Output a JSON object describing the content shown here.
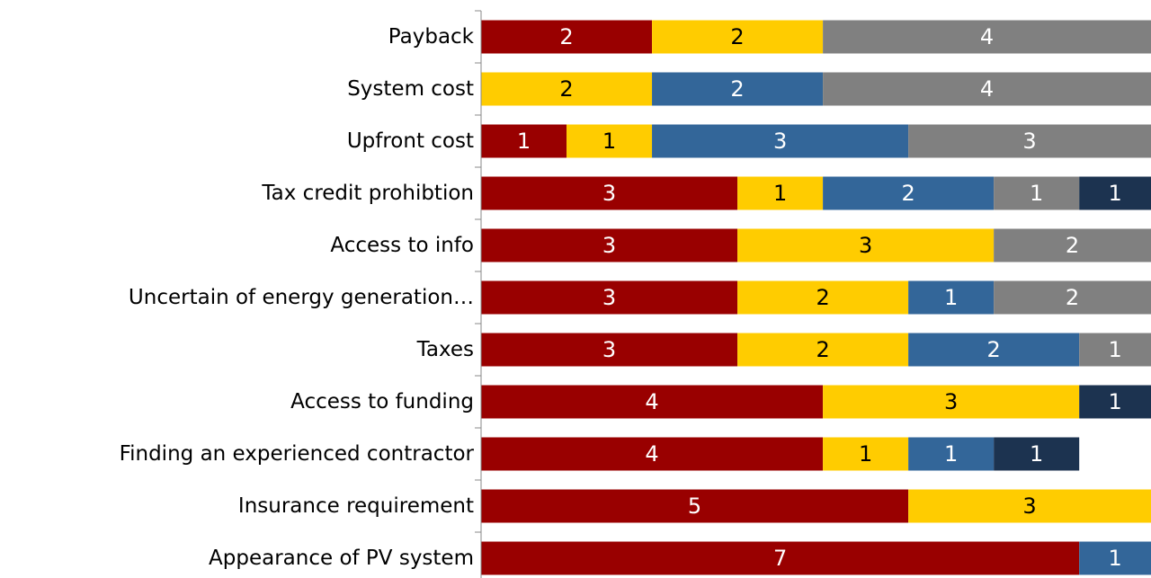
{
  "chart_data": {
    "type": "stacked-bar-horizontal",
    "categories": [
      "Payback",
      "System cost",
      "Upfront cost",
      "Tax credit prohibtion",
      "Access to info",
      "Uncertain of energy generation…",
      "Taxes",
      "Access to funding",
      "Finding an experienced contractor",
      "Insurance requirement",
      "Appearance of PV system"
    ],
    "series": [
      {
        "color": "#990000",
        "values": [
          2,
          null,
          1,
          3,
          3,
          3,
          3,
          4,
          4,
          5,
          7
        ]
      },
      {
        "color": "#ffcc00",
        "values": [
          2,
          2,
          1,
          1,
          3,
          2,
          2,
          3,
          1,
          3,
          null
        ]
      },
      {
        "color": "#336699",
        "values": [
          null,
          2,
          3,
          2,
          null,
          1,
          2,
          null,
          1,
          null,
          1
        ]
      },
      {
        "color": "#808080",
        "values": [
          4,
          4,
          3,
          1,
          2,
          2,
          1,
          null,
          null,
          null,
          null
        ]
      },
      {
        "color": "#1c3350",
        "values": [
          null,
          null,
          null,
          1,
          null,
          null,
          null,
          1,
          1,
          null,
          null
        ]
      }
    ],
    "xlim": [
      0,
      7.84
    ]
  }
}
